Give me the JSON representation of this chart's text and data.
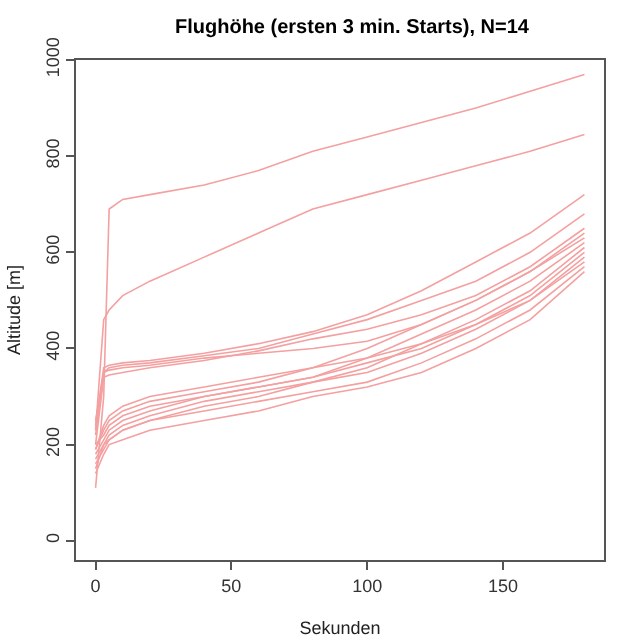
{
  "chart_data": {
    "type": "line",
    "title": "Flughöhe (ersten 3 min. Starts), N=14",
    "xlabel": "Sekunden",
    "ylabel": "Altitude [m]",
    "x": [
      0,
      3,
      5,
      10,
      20,
      40,
      60,
      80,
      100,
      120,
      140,
      160,
      180
    ],
    "xlim": [
      -7.2,
      187.2
    ],
    "xticks": [
      0,
      50,
      100,
      150
    ],
    "ylim": [
      -40,
      1000
    ],
    "yticks": [
      0,
      200,
      400,
      600,
      800,
      1000
    ],
    "grid": false,
    "line_style": "solid",
    "series": [
      {
        "color": "#f4a0a0",
        "values": [
          110,
          300,
          690,
          710,
          720,
          740,
          770,
          810,
          840,
          870,
          900,
          935,
          970
        ]
      },
      {
        "color": "#f4a0a0",
        "values": [
          230,
          460,
          480,
          510,
          540,
          590,
          640,
          690,
          720,
          750,
          780,
          810,
          845
        ]
      },
      {
        "color": "#f4a0a0",
        "values": [
          240,
          360,
          365,
          370,
          375,
          390,
          410,
          435,
          470,
          520,
          580,
          640,
          720
        ]
      },
      {
        "color": "#f4a0a0",
        "values": [
          250,
          350,
          360,
          365,
          370,
          385,
          400,
          430,
          460,
          500,
          540,
          600,
          680
        ]
      },
      {
        "color": "#f4a0a0",
        "values": [
          200,
          340,
          345,
          350,
          360,
          375,
          395,
          420,
          440,
          470,
          510,
          570,
          650
        ]
      },
      {
        "color": "#f4a0a0",
        "values": [
          220,
          350,
          355,
          360,
          365,
          380,
          390,
          400,
          415,
          450,
          500,
          560,
          640
        ]
      },
      {
        "color": "#f4a0a0",
        "values": [
          190,
          230,
          250,
          270,
          290,
          310,
          330,
          360,
          400,
          450,
          500,
          560,
          630
        ]
      },
      {
        "color": "#f4a0a0",
        "values": [
          180,
          210,
          230,
          250,
          270,
          300,
          320,
          340,
          380,
          430,
          480,
          540,
          620
        ]
      },
      {
        "color": "#f4a0a0",
        "values": [
          170,
          200,
          220,
          240,
          260,
          290,
          310,
          330,
          360,
          410,
          460,
          520,
          610
        ]
      },
      {
        "color": "#f4a0a0",
        "values": [
          200,
          220,
          240,
          260,
          280,
          300,
          320,
          340,
          370,
          400,
          450,
          510,
          600
        ]
      },
      {
        "color": "#f4a0a0",
        "values": [
          150,
          200,
          210,
          230,
          250,
          280,
          300,
          330,
          350,
          390,
          440,
          500,
          590
        ]
      },
      {
        "color": "#f4a0a0",
        "values": [
          190,
          240,
          260,
          280,
          300,
          320,
          340,
          360,
          380,
          410,
          450,
          500,
          580
        ]
      },
      {
        "color": "#f4a0a0",
        "values": [
          160,
          190,
          210,
          230,
          250,
          270,
          290,
          310,
          330,
          370,
          420,
          480,
          570
        ]
      },
      {
        "color": "#f4a0a0",
        "values": [
          140,
          180,
          200,
          210,
          230,
          250,
          270,
          300,
          320,
          350,
          400,
          460,
          560
        ]
      }
    ]
  }
}
